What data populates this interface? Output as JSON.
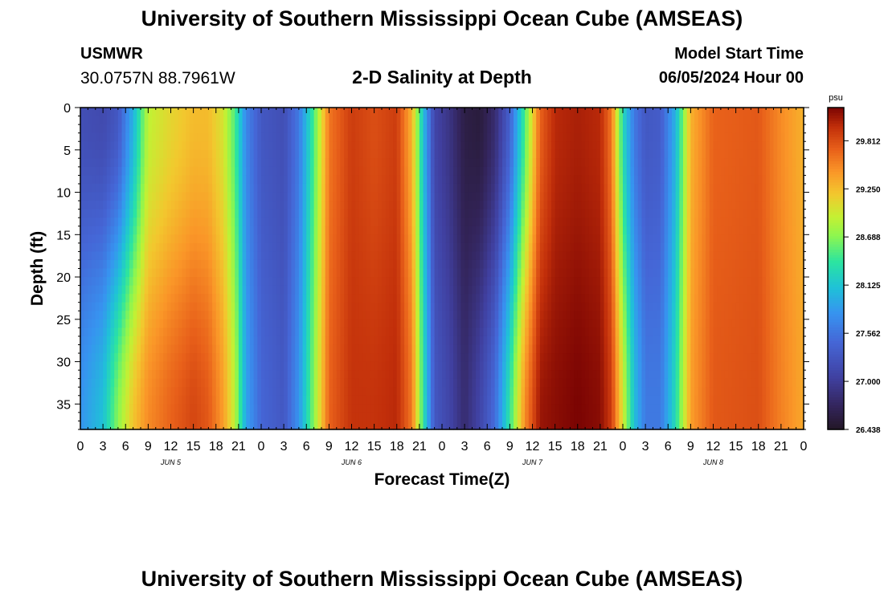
{
  "header": {
    "title": "University of Southern Mississippi Ocean Cube (AMSEAS)",
    "station": "USMWR",
    "coords": "30.0757N  88.7961W",
    "subtitle": "2-D Salinity at Depth",
    "model_start_label": "Model Start Time",
    "model_start_value": "06/05/2024 Hour 00"
  },
  "footer": {
    "title": "University of Southern Mississippi Ocean Cube (AMSEAS)"
  },
  "chart_data": {
    "type": "heatmap",
    "title": "2-D Salinity at Depth",
    "xlabel": "Forecast Time(Z)",
    "ylabel": "Depth (ft)",
    "xlim": [
      0,
      96
    ],
    "ylim": [
      0,
      38
    ],
    "x_ticks": [
      0,
      3,
      6,
      9,
      12,
      15,
      18,
      21,
      24,
      27,
      30,
      33,
      36,
      39,
      42,
      45,
      48,
      51,
      54,
      57,
      60,
      63,
      66,
      69,
      72,
      75,
      78,
      81,
      84,
      87,
      90,
      93,
      96
    ],
    "x_tick_labels": [
      "0",
      "3",
      "6",
      "9",
      "12",
      "15",
      "18",
      "21",
      "0",
      "3",
      "6",
      "9",
      "12",
      "15",
      "18",
      "21",
      "0",
      "3",
      "6",
      "9",
      "12",
      "15",
      "18",
      "21",
      "0",
      "3",
      "6",
      "9",
      "12",
      "15",
      "18",
      "21",
      "0"
    ],
    "y_ticks": [
      0,
      5,
      10,
      15,
      20,
      25,
      30,
      35
    ],
    "y_tick_labels": [
      "0",
      "5",
      "10",
      "15",
      "20",
      "25",
      "30",
      "35"
    ],
    "day_labels": [
      {
        "label": "JUN 5",
        "hour": 12
      },
      {
        "label": "JUN 6",
        "hour": 36
      },
      {
        "label": "JUN 7",
        "hour": 60
      },
      {
        "label": "JUN 8",
        "hour": 84
      }
    ],
    "colorbar": {
      "unit": "psu",
      "min": 26.438,
      "max": 30.2,
      "tick_values": [
        26.438,
        27.0,
        27.562,
        28.125,
        28.688,
        29.25,
        29.812
      ],
      "tick_labels": [
        "26.438",
        "27.000",
        "27.562",
        "28.125",
        "28.688",
        "29.250",
        "29.812"
      ]
    },
    "columns": [
      {
        "hour": 0,
        "surface": 27.2,
        "bottom": 27.8
      },
      {
        "hour": 3,
        "surface": 27.15,
        "bottom": 28.1
      },
      {
        "hour": 5,
        "surface": 27.3,
        "bottom": 28.7
      },
      {
        "hour": 7,
        "surface": 28.0,
        "bottom": 29.2
      },
      {
        "hour": 9,
        "surface": 28.9,
        "bottom": 29.5
      },
      {
        "hour": 12,
        "surface": 29.1,
        "bottom": 29.7
      },
      {
        "hour": 15,
        "surface": 29.25,
        "bottom": 29.85
      },
      {
        "hour": 17,
        "surface": 29.25,
        "bottom": 29.75
      },
      {
        "hour": 19,
        "surface": 29.0,
        "bottom": 29.4
      },
      {
        "hour": 20.5,
        "surface": 28.5,
        "bottom": 28.9
      },
      {
        "hour": 22,
        "surface": 27.7,
        "bottom": 27.9
      },
      {
        "hour": 24,
        "surface": 27.3,
        "bottom": 27.45
      },
      {
        "hour": 27,
        "surface": 27.2,
        "bottom": 27.3
      },
      {
        "hour": 29,
        "surface": 27.6,
        "bottom": 27.8
      },
      {
        "hour": 31,
        "surface": 28.5,
        "bottom": 28.7
      },
      {
        "hour": 33,
        "surface": 29.6,
        "bottom": 29.7
      },
      {
        "hour": 36,
        "surface": 29.9,
        "bottom": 29.95
      },
      {
        "hour": 39,
        "surface": 29.8,
        "bottom": 29.95
      },
      {
        "hour": 42,
        "surface": 29.9,
        "bottom": 30.0
      },
      {
        "hour": 44,
        "surface": 29.3,
        "bottom": 29.6
      },
      {
        "hour": 45.5,
        "surface": 28.1,
        "bottom": 28.4
      },
      {
        "hour": 47,
        "surface": 27.1,
        "bottom": 27.3
      },
      {
        "hour": 49,
        "surface": 26.9,
        "bottom": 27.1
      },
      {
        "hour": 51,
        "surface": 26.6,
        "bottom": 26.8
      },
      {
        "hour": 53,
        "surface": 26.55,
        "bottom": 27.1
      },
      {
        "hour": 55,
        "surface": 26.8,
        "bottom": 27.5
      },
      {
        "hour": 57,
        "surface": 27.4,
        "bottom": 28.4
      },
      {
        "hour": 59,
        "surface": 28.5,
        "bottom": 29.5
      },
      {
        "hour": 61,
        "surface": 29.7,
        "bottom": 30.1
      },
      {
        "hour": 63,
        "surface": 30.0,
        "bottom": 30.15
      },
      {
        "hour": 66,
        "surface": 30.05,
        "bottom": 30.2
      },
      {
        "hour": 69,
        "surface": 30.0,
        "bottom": 30.15
      },
      {
        "hour": 70.5,
        "surface": 29.6,
        "bottom": 29.9
      },
      {
        "hour": 72,
        "surface": 28.3,
        "bottom": 29.0
      },
      {
        "hour": 73.5,
        "surface": 27.6,
        "bottom": 28.1
      },
      {
        "hour": 75,
        "surface": 27.3,
        "bottom": 27.6
      },
      {
        "hour": 77,
        "surface": 27.35,
        "bottom": 27.6
      },
      {
        "hour": 79,
        "surface": 28.0,
        "bottom": 28.3
      },
      {
        "hour": 81,
        "surface": 29.3,
        "bottom": 29.4
      },
      {
        "hour": 84,
        "surface": 29.7,
        "bottom": 29.75
      },
      {
        "hour": 90,
        "surface": 29.75,
        "bottom": 29.8
      },
      {
        "hour": 93,
        "surface": 29.5,
        "bottom": 29.55
      },
      {
        "hour": 96,
        "surface": 29.3,
        "bottom": 29.35
      }
    ]
  }
}
